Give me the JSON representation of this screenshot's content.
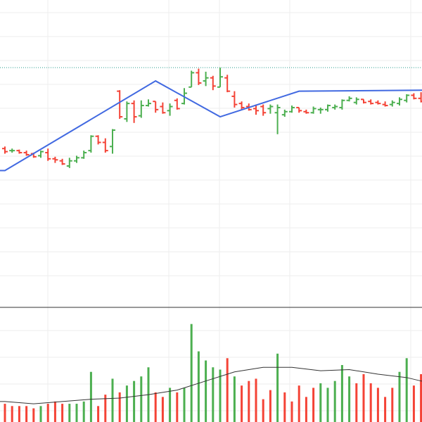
{
  "colors": {
    "up": "#4caf50",
    "down": "#f44336",
    "zigzag": "#4169e1",
    "volume_ma": "#333333",
    "grid": "#eeeeee",
    "separator": "#333333",
    "price_line": "#2a9d8f"
  },
  "chart_data": [
    {
      "type": "ohlc",
      "panel": "price",
      "ylim": [
        0,
        600
      ],
      "grid": true,
      "price_line": 468,
      "zigzag": [
        [
          0,
          267
        ],
        [
          21,
          442
        ],
        [
          30,
          372
        ],
        [
          41,
          422
        ]
      ],
      "bars": [
        [
          0,
          310,
          314,
          300,
          304
        ],
        [
          1,
          306,
          310,
          302,
          306
        ],
        [
          2,
          306,
          308,
          300,
          302
        ],
        [
          3,
          302,
          306,
          296,
          298
        ],
        [
          4,
          300,
          302,
          292,
          294
        ],
        [
          5,
          296,
          306,
          292,
          304
        ],
        [
          6,
          302,
          310,
          286,
          290
        ],
        [
          7,
          290,
          294,
          282,
          288
        ],
        [
          8,
          286,
          290,
          278,
          280
        ],
        [
          9,
          276,
          292,
          272,
          286
        ],
        [
          10,
          286,
          296,
          282,
          292
        ],
        [
          11,
          292,
          306,
          290,
          302
        ],
        [
          12,
          306,
          336,
          302,
          334
        ],
        [
          13,
          334,
          336,
          318,
          322
        ],
        [
          14,
          322,
          330,
          302,
          306
        ],
        [
          15,
          314,
          348,
          300,
          346
        ],
        [
          16,
          422,
          424,
          368,
          372
        ],
        [
          17,
          368,
          402,
          362,
          398
        ],
        [
          18,
          398,
          404,
          360,
          372
        ],
        [
          19,
          374,
          404,
          370,
          394
        ],
        [
          20,
          394,
          406,
          392,
          398
        ],
        [
          21,
          402,
          402,
          380,
          386
        ],
        [
          22,
          392,
          400,
          378,
          380
        ],
        [
          23,
          384,
          398,
          374,
          392
        ],
        [
          24,
          404,
          408,
          386,
          388
        ],
        [
          25,
          398,
          428,
          396,
          418
        ],
        [
          26,
          430,
          462,
          430,
          458
        ],
        [
          27,
          458,
          466,
          434,
          438
        ],
        [
          28,
          442,
          460,
          432,
          448
        ],
        [
          29,
          448,
          452,
          424,
          432
        ],
        [
          30,
          430,
          468,
          430,
          450
        ],
        [
          31,
          448,
          454,
          420,
          422
        ],
        [
          32,
          412,
          422,
          390,
          396
        ],
        [
          33,
          398,
          402,
          386,
          390
        ],
        [
          34,
          392,
          398,
          384,
          386
        ],
        [
          35,
          388,
          396,
          376,
          384
        ],
        [
          36,
          392,
          396,
          374,
          380
        ],
        [
          37,
          388,
          396,
          378,
          392
        ],
        [
          38,
          380,
          396,
          338,
          390
        ],
        [
          39,
          376,
          386,
          372,
          382
        ],
        [
          40,
          382,
          394,
          380,
          390
        ],
        [
          41,
          390,
          390,
          380,
          384
        ],
        [
          42,
          382,
          386,
          378,
          380
        ],
        [
          43,
          380,
          392,
          378,
          388
        ],
        [
          44,
          386,
          390,
          378,
          386
        ],
        [
          45,
          386,
          396,
          382,
          394
        ],
        [
          46,
          390,
          396,
          386,
          392
        ],
        [
          47,
          390,
          406,
          386,
          404
        ],
        [
          48,
          404,
          412,
          402,
          408
        ],
        [
          49,
          400,
          410,
          396,
          406
        ],
        [
          50,
          406,
          406,
          398,
          400
        ],
        [
          51,
          402,
          406,
          396,
          398
        ],
        [
          52,
          400,
          404,
          396,
          398
        ],
        [
          53,
          396,
          402,
          392,
          394
        ],
        [
          54,
          396,
          404,
          392,
          400
        ],
        [
          55,
          398,
          410,
          394,
          406
        ],
        [
          56,
          404,
          416,
          400,
          414
        ],
        [
          57,
          414,
          418,
          406,
          408
        ],
        [
          58,
          408,
          420,
          400,
          402
        ]
      ]
    },
    {
      "type": "bar",
      "panel": "volume",
      "ylim": [
        0,
        100
      ],
      "grid": true,
      "values": [
        [
          0,
          16,
          "down"
        ],
        [
          1,
          14,
          "down"
        ],
        [
          2,
          14,
          "down"
        ],
        [
          3,
          14,
          "down"
        ],
        [
          4,
          12,
          "down"
        ],
        [
          5,
          14,
          "up"
        ],
        [
          6,
          16,
          "down"
        ],
        [
          7,
          18,
          "down"
        ],
        [
          8,
          16,
          "down"
        ],
        [
          9,
          16,
          "up"
        ],
        [
          10,
          16,
          "up"
        ],
        [
          11,
          18,
          "up"
        ],
        [
          12,
          44,
          "up"
        ],
        [
          13,
          14,
          "down"
        ],
        [
          14,
          24,
          "down"
        ],
        [
          15,
          38,
          "up"
        ],
        [
          16,
          26,
          "down"
        ],
        [
          17,
          32,
          "up"
        ],
        [
          18,
          36,
          "up"
        ],
        [
          19,
          40,
          "up"
        ],
        [
          20,
          48,
          "up"
        ],
        [
          21,
          26,
          "down"
        ],
        [
          22,
          22,
          "down"
        ],
        [
          23,
          30,
          "up"
        ],
        [
          24,
          26,
          "down"
        ],
        [
          25,
          30,
          "up"
        ],
        [
          26,
          86,
          "up"
        ],
        [
          27,
          62,
          "up"
        ],
        [
          28,
          54,
          "up"
        ],
        [
          29,
          48,
          "up"
        ],
        [
          30,
          46,
          "up"
        ],
        [
          31,
          56,
          "down"
        ],
        [
          32,
          40,
          "up"
        ],
        [
          33,
          32,
          "down"
        ],
        [
          34,
          36,
          "down"
        ],
        [
          35,
          38,
          "down"
        ],
        [
          36,
          20,
          "down"
        ],
        [
          37,
          28,
          "down"
        ],
        [
          38,
          60,
          "up"
        ],
        [
          39,
          26,
          "down"
        ],
        [
          40,
          18,
          "down"
        ],
        [
          41,
          32,
          "down"
        ],
        [
          42,
          22,
          "down"
        ],
        [
          43,
          30,
          "down"
        ],
        [
          44,
          34,
          "up"
        ],
        [
          45,
          30,
          "up"
        ],
        [
          46,
          36,
          "up"
        ],
        [
          47,
          50,
          "up"
        ],
        [
          48,
          40,
          "up"
        ],
        [
          49,
          34,
          "down"
        ],
        [
          50,
          42,
          "down"
        ],
        [
          51,
          34,
          "down"
        ],
        [
          52,
          30,
          "down"
        ],
        [
          53,
          22,
          "down"
        ],
        [
          54,
          30,
          "down"
        ],
        [
          55,
          44,
          "up"
        ],
        [
          56,
          56,
          "up"
        ],
        [
          57,
          32,
          "down"
        ],
        [
          58,
          42,
          "down"
        ]
      ],
      "ma": [
        [
          0,
          18
        ],
        [
          4,
          16
        ],
        [
          8,
          18
        ],
        [
          12,
          20
        ],
        [
          16,
          21
        ],
        [
          20,
          24
        ],
        [
          24,
          28
        ],
        [
          28,
          36
        ],
        [
          32,
          44
        ],
        [
          36,
          48
        ],
        [
          40,
          48
        ],
        [
          44,
          45
        ],
        [
          48,
          46
        ],
        [
          52,
          42
        ],
        [
          56,
          39
        ],
        [
          58,
          36
        ]
      ]
    }
  ]
}
